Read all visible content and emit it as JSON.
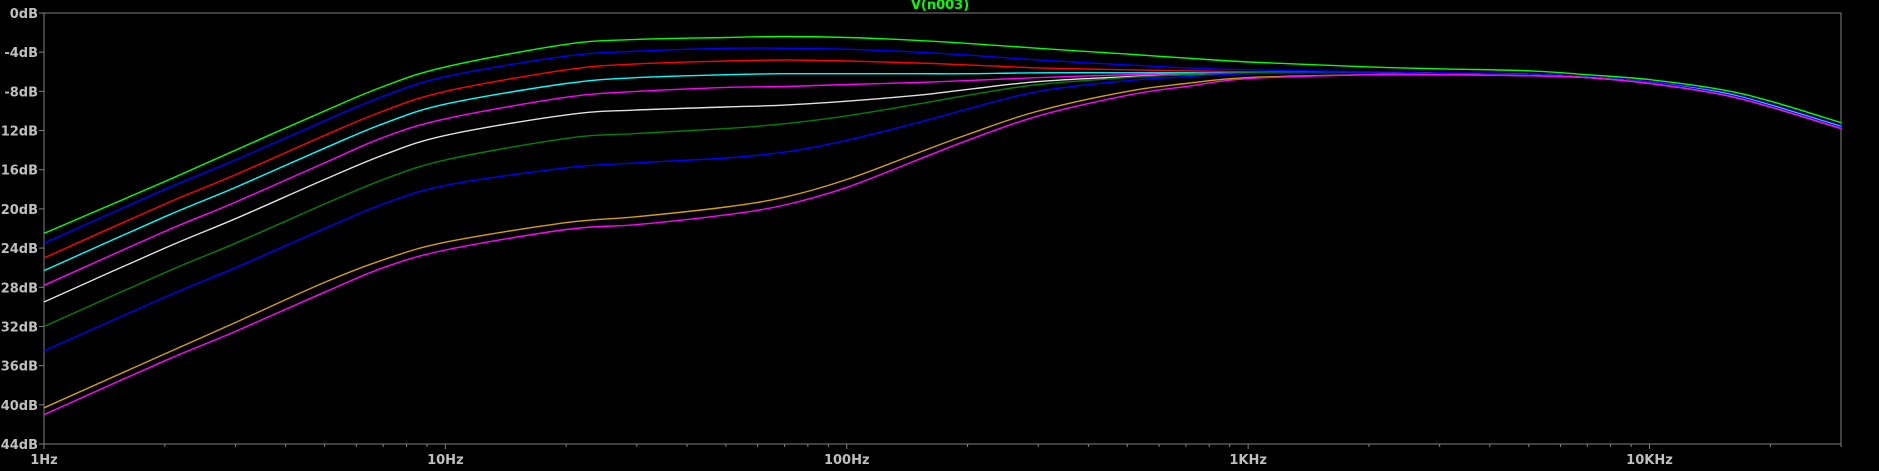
{
  "window": {
    "trace_label": "V(n003)",
    "trace_label_color": "#00ff00"
  },
  "chart_data": {
    "type": "line",
    "title": "V(n003)",
    "xscale": "log",
    "xlim": [
      1,
      30000
    ],
    "ylim": [
      -44,
      0
    ],
    "grid": false,
    "x_ticks": [
      {
        "value": 1,
        "label": "1Hz"
      },
      {
        "value": 10,
        "label": "10Hz"
      },
      {
        "value": 100,
        "label": "100Hz"
      },
      {
        "value": 1000,
        "label": "1KHz"
      },
      {
        "value": 10000,
        "label": "10KHz"
      }
    ],
    "y_ticks": [
      {
        "value": 0,
        "label": "0dB"
      },
      {
        "value": -4,
        "label": "-4dB"
      },
      {
        "value": -8,
        "label": "-8dB"
      },
      {
        "value": -12,
        "label": "-12dB"
      },
      {
        "value": -16,
        "label": "-16dB"
      },
      {
        "value": -20,
        "label": "-20dB"
      },
      {
        "value": -24,
        "label": "-24dB"
      },
      {
        "value": -28,
        "label": "-28dB"
      },
      {
        "value": -32,
        "label": "-32dB"
      },
      {
        "value": -36,
        "label": "-36dB"
      },
      {
        "value": -40,
        "label": "-40dB"
      },
      {
        "value": -44,
        "label": "-44dB"
      }
    ],
    "x": [
      1,
      2,
      3,
      5,
      7,
      10,
      20,
      30,
      50,
      70,
      100,
      150,
      200,
      300,
      500,
      700,
      1000,
      2000,
      3000,
      5000,
      7000,
      10000,
      15000,
      20000,
      30000
    ],
    "series": [
      {
        "color": "#00ff00",
        "values": [
          -22.5,
          -17.2,
          -14.0,
          -10.0,
          -7.5,
          -5.5,
          -3.2,
          -2.7,
          -2.5,
          -2.4,
          -2.5,
          -2.8,
          -3.1,
          -3.6,
          -4.2,
          -4.6,
          -5.0,
          -5.5,
          -5.7,
          -5.9,
          -6.3,
          -6.8,
          -7.8,
          -9.0,
          -11.2
        ]
      },
      {
        "color": "#0000ff",
        "values": [
          -23.5,
          -18.0,
          -15.0,
          -11.0,
          -8.5,
          -6.5,
          -4.4,
          -3.9,
          -3.6,
          -3.6,
          -3.7,
          -4.0,
          -4.3,
          -4.8,
          -5.3,
          -5.6,
          -5.8,
          -6.0,
          -6.1,
          -6.2,
          -6.5,
          -7.0,
          -8.0,
          -9.3,
          -11.5
        ]
      },
      {
        "color": "#ff0000",
        "values": [
          -25.0,
          -19.5,
          -16.5,
          -12.5,
          -10.0,
          -8.0,
          -5.8,
          -5.2,
          -4.9,
          -4.8,
          -4.9,
          -5.1,
          -5.3,
          -5.6,
          -5.8,
          -5.9,
          -6.0,
          -6.1,
          -6.2,
          -6.3,
          -6.6,
          -7.1,
          -8.1,
          -9.4,
          -11.6
        ]
      },
      {
        "color": "#00ffff",
        "values": [
          -26.3,
          -20.8,
          -17.8,
          -13.8,
          -11.3,
          -9.3,
          -7.2,
          -6.6,
          -6.3,
          -6.2,
          -6.2,
          -6.2,
          -6.2,
          -6.1,
          -6.1,
          -6.1,
          -6.1,
          -6.1,
          -6.2,
          -6.3,
          -6.6,
          -7.1,
          -8.1,
          -9.4,
          -11.6
        ]
      },
      {
        "color": "#ff00ff",
        "values": [
          -27.8,
          -22.3,
          -19.3,
          -15.3,
          -12.7,
          -10.8,
          -8.6,
          -8.0,
          -7.6,
          -7.5,
          -7.3,
          -7.1,
          -6.9,
          -6.6,
          -6.3,
          -6.2,
          -6.1,
          -6.1,
          -6.2,
          -6.3,
          -6.6,
          -7.1,
          -8.2,
          -9.5,
          -11.7
        ]
      },
      {
        "color": "#e0e0e0",
        "values": [
          -29.5,
          -24.0,
          -21.0,
          -17.0,
          -14.5,
          -12.5,
          -10.4,
          -9.9,
          -9.6,
          -9.4,
          -9.0,
          -8.4,
          -7.8,
          -7.0,
          -6.5,
          -6.3,
          -6.1,
          -6.1,
          -6.2,
          -6.3,
          -6.6,
          -7.1,
          -8.2,
          -9.5,
          -11.7
        ]
      },
      {
        "color": "#008000",
        "values": [
          -32.0,
          -26.5,
          -23.5,
          -19.5,
          -17.0,
          -15.0,
          -12.8,
          -12.3,
          -11.8,
          -11.3,
          -10.5,
          -9.3,
          -8.4,
          -7.3,
          -6.6,
          -6.3,
          -6.1,
          -6.1,
          -6.2,
          -6.3,
          -6.6,
          -7.1,
          -8.2,
          -9.5,
          -11.7
        ]
      },
      {
        "color": "#0000ff",
        "values": [
          -34.5,
          -29.0,
          -26.0,
          -22.0,
          -19.5,
          -17.6,
          -15.8,
          -15.3,
          -14.8,
          -14.2,
          -13.0,
          -11.2,
          -9.8,
          -8.0,
          -6.9,
          -6.5,
          -6.2,
          -6.1,
          -6.2,
          -6.3,
          -6.6,
          -7.1,
          -8.2,
          -9.5,
          -11.7
        ]
      },
      {
        "color": "#d4a000",
        "values": [
          -40.3,
          -34.8,
          -31.6,
          -27.5,
          -25.2,
          -23.4,
          -21.4,
          -20.8,
          -19.8,
          -18.8,
          -17.0,
          -14.3,
          -12.4,
          -10.0,
          -8.0,
          -7.2,
          -6.6,
          -6.3,
          -6.3,
          -6.4,
          -6.6,
          -7.2,
          -8.3,
          -9.6,
          -11.8
        ]
      },
      {
        "color": "#ff00ff",
        "values": [
          -41.0,
          -35.5,
          -32.5,
          -28.5,
          -26.0,
          -24.2,
          -22.1,
          -21.6,
          -20.6,
          -19.6,
          -17.8,
          -15.0,
          -13.0,
          -10.5,
          -8.4,
          -7.5,
          -6.7,
          -6.3,
          -6.3,
          -6.4,
          -6.6,
          -7.2,
          -8.3,
          -9.6,
          -11.8
        ]
      }
    ]
  }
}
